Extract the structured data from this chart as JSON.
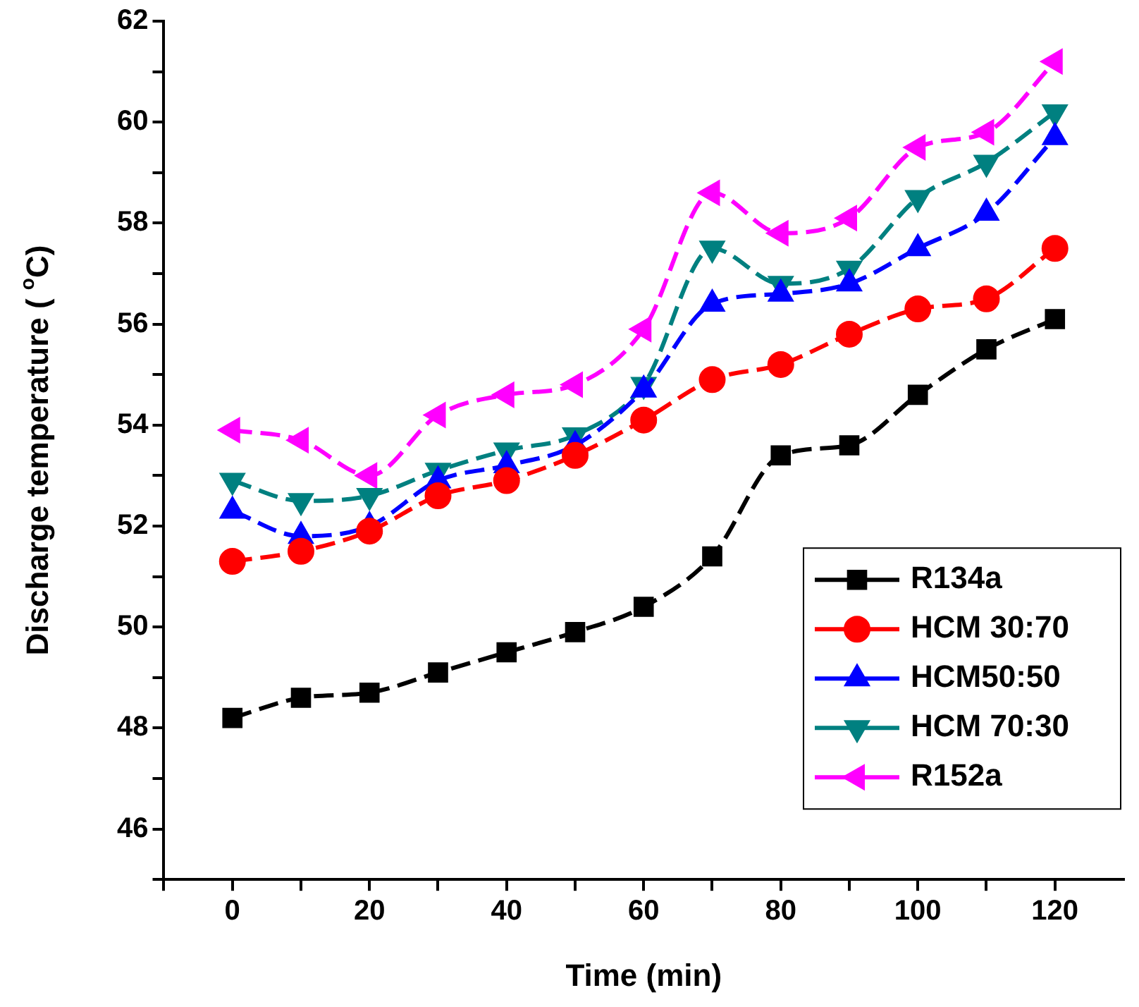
{
  "chart_data": {
    "type": "line",
    "xlabel": "Time (min)",
    "ylabel": "Discharge temperature ( $^{o}$C)",
    "x": [
      0,
      10,
      20,
      30,
      40,
      50,
      60,
      70,
      80,
      90,
      100,
      110,
      120
    ],
    "xlim": [
      -10,
      130
    ],
    "xticks": [
      {
        "value": -10,
        "label": null
      },
      0,
      {
        "value": 10,
        "label": null
      },
      20,
      {
        "value": 30,
        "label": null
      },
      40,
      {
        "value": 50,
        "label": null
      },
      60,
      {
        "value": 70,
        "label": null
      },
      80,
      {
        "value": 90,
        "label": null
      },
      100,
      {
        "value": 110,
        "label": null
      },
      120
    ],
    "ylim": [
      45,
      62
    ],
    "yticks": [
      {
        "value": 45,
        "label": null
      },
      46,
      {
        "value": 47,
        "label": null
      },
      48,
      {
        "value": 49,
        "label": null
      },
      50,
      {
        "value": 51,
        "label": null
      },
      52,
      {
        "value": 53,
        "label": null
      },
      54,
      {
        "value": 55,
        "label": null
      },
      56,
      {
        "value": 57,
        "label": null
      },
      58,
      {
        "value": 59,
        "label": null
      },
      60,
      {
        "value": 61,
        "label": null
      },
      62
    ],
    "grid": false,
    "legend": "bottom right",
    "line_style": "dashed",
    "series": [
      {
        "name": "R134a",
        "color": "#000000",
        "marker": "square",
        "values": [
          48.2,
          48.6,
          48.7,
          49.1,
          49.5,
          49.9,
          50.4,
          51.4,
          53.4,
          53.6,
          54.6,
          55.5,
          56.1
        ]
      },
      {
        "name": "HCM 30:70",
        "color": "#ff0000",
        "marker": "circle",
        "values": [
          51.3,
          51.5,
          51.9,
          52.6,
          52.9,
          53.4,
          54.1,
          54.9,
          55.2,
          55.8,
          56.3,
          56.5,
          57.5
        ]
      },
      {
        "name": "HCM50:50",
        "color": "#0000ff",
        "marker": "triangle",
        "values": [
          52.3,
          51.8,
          52.0,
          52.9,
          53.2,
          53.6,
          54.7,
          56.4,
          56.6,
          56.8,
          57.5,
          58.2,
          59.7
        ]
      },
      {
        "name": "HCM 70:30",
        "color": "#008080",
        "marker": "triangle-down",
        "values": [
          52.9,
          52.5,
          52.6,
          53.1,
          53.5,
          53.8,
          54.8,
          57.5,
          56.8,
          57.1,
          58.5,
          59.2,
          60.2
        ]
      },
      {
        "name": "R152a",
        "color": "#ff00ff",
        "marker": "triangle-left",
        "values": [
          53.9,
          53.7,
          53.0,
          54.2,
          54.6,
          54.8,
          55.9,
          58.6,
          57.8,
          58.1,
          59.5,
          59.8,
          61.2
        ]
      }
    ]
  }
}
